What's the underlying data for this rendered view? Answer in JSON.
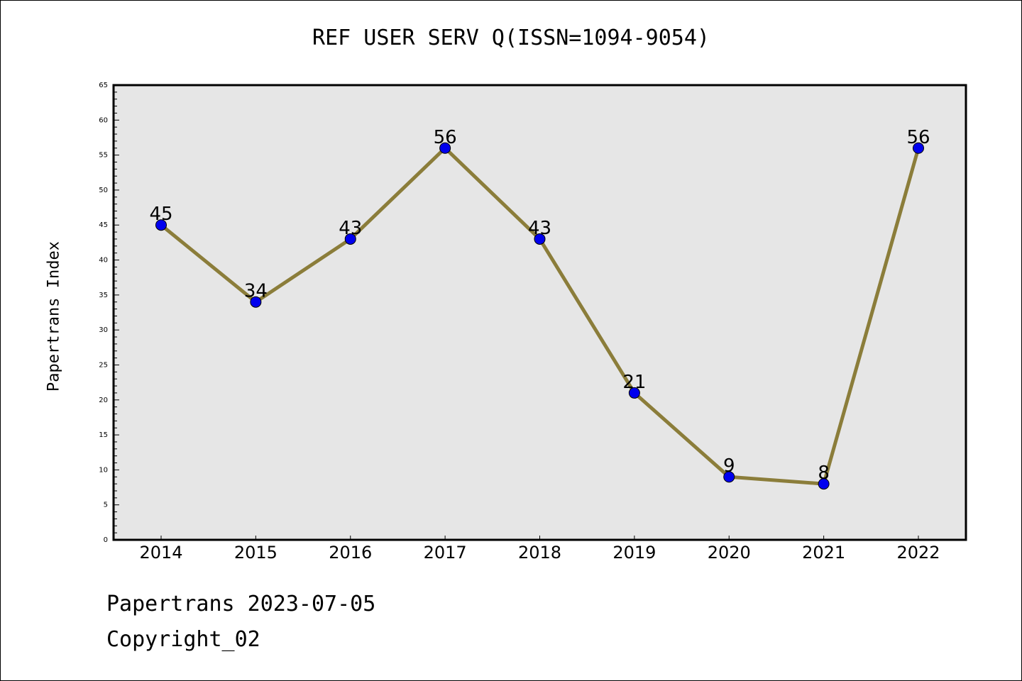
{
  "chart_data": {
    "type": "line",
    "title": "REF USER SERV Q(ISSN=1094-9054)",
    "xlabel": "",
    "ylabel": "Papertrans Index",
    "categories": [
      "2014",
      "2015",
      "2016",
      "2017",
      "2018",
      "2019",
      "2020",
      "2021",
      "2022"
    ],
    "series": [
      {
        "values": [
          45,
          34,
          43,
          56,
          43,
          21,
          9,
          8,
          56
        ]
      }
    ],
    "ylim": [
      0,
      65
    ],
    "yticks": [
      0,
      5,
      10,
      15,
      20,
      25,
      30,
      35,
      40,
      45,
      50,
      55,
      60,
      65
    ],
    "grid": false,
    "line_color": "#8b7d3a",
    "marker_color": "#0000ee",
    "plot_background": "#e6e6e6"
  },
  "footer": {
    "line1": "Papertrans 2023-07-05",
    "line2": "Copyright_02"
  }
}
